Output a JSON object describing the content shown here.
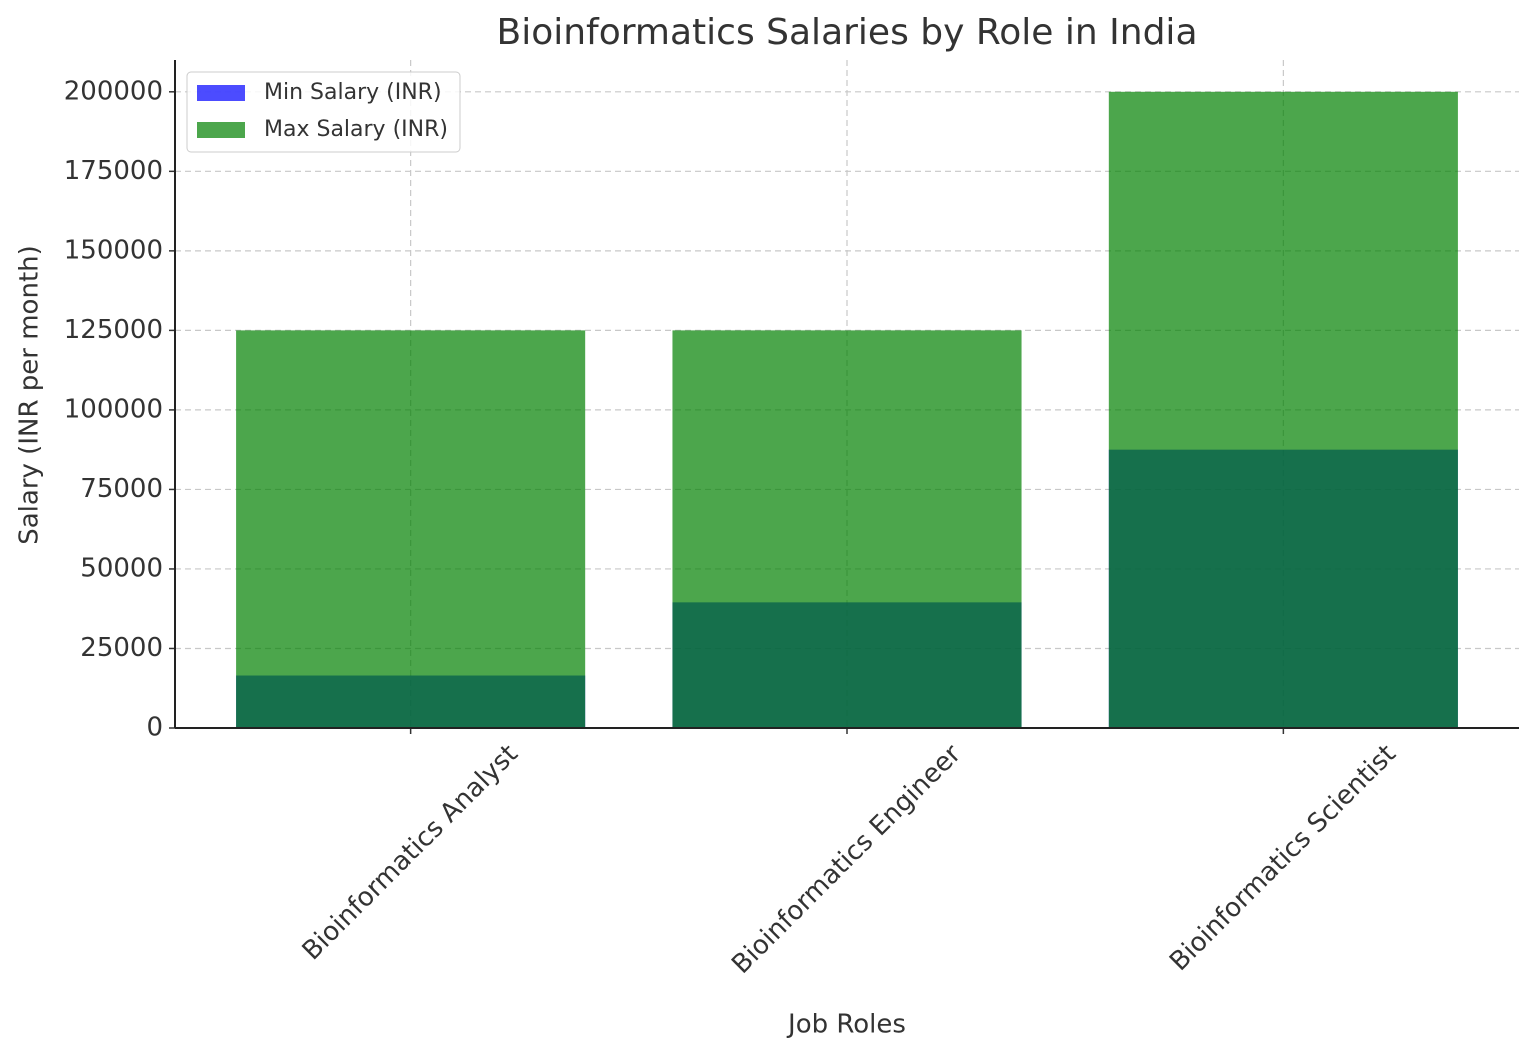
{
  "chart_data": {
    "type": "bar",
    "title": "Bioinformatics Salaries by Role in India",
    "x_label": "Job Roles",
    "y_label": "Salary (INR per month)",
    "categories": [
      "Bioinformatics Analyst",
      "Bioinformatics Engineer",
      "Bioinformatics Scientist"
    ],
    "series": [
      {
        "name": "Min Salary (INR)",
        "color": "#0000ff",
        "values": [
          16500,
          39500,
          87500
        ]
      },
      {
        "name": "Max Salary (INR)",
        "color": "#008000",
        "values": [
          125000,
          125000,
          200000
        ]
      }
    ],
    "ylim": [
      0,
      210000
    ],
    "yticks": [
      0,
      25000,
      50000,
      75000,
      100000,
      125000,
      150000,
      175000,
      200000
    ],
    "grid": true,
    "legend": "upper-left"
  }
}
